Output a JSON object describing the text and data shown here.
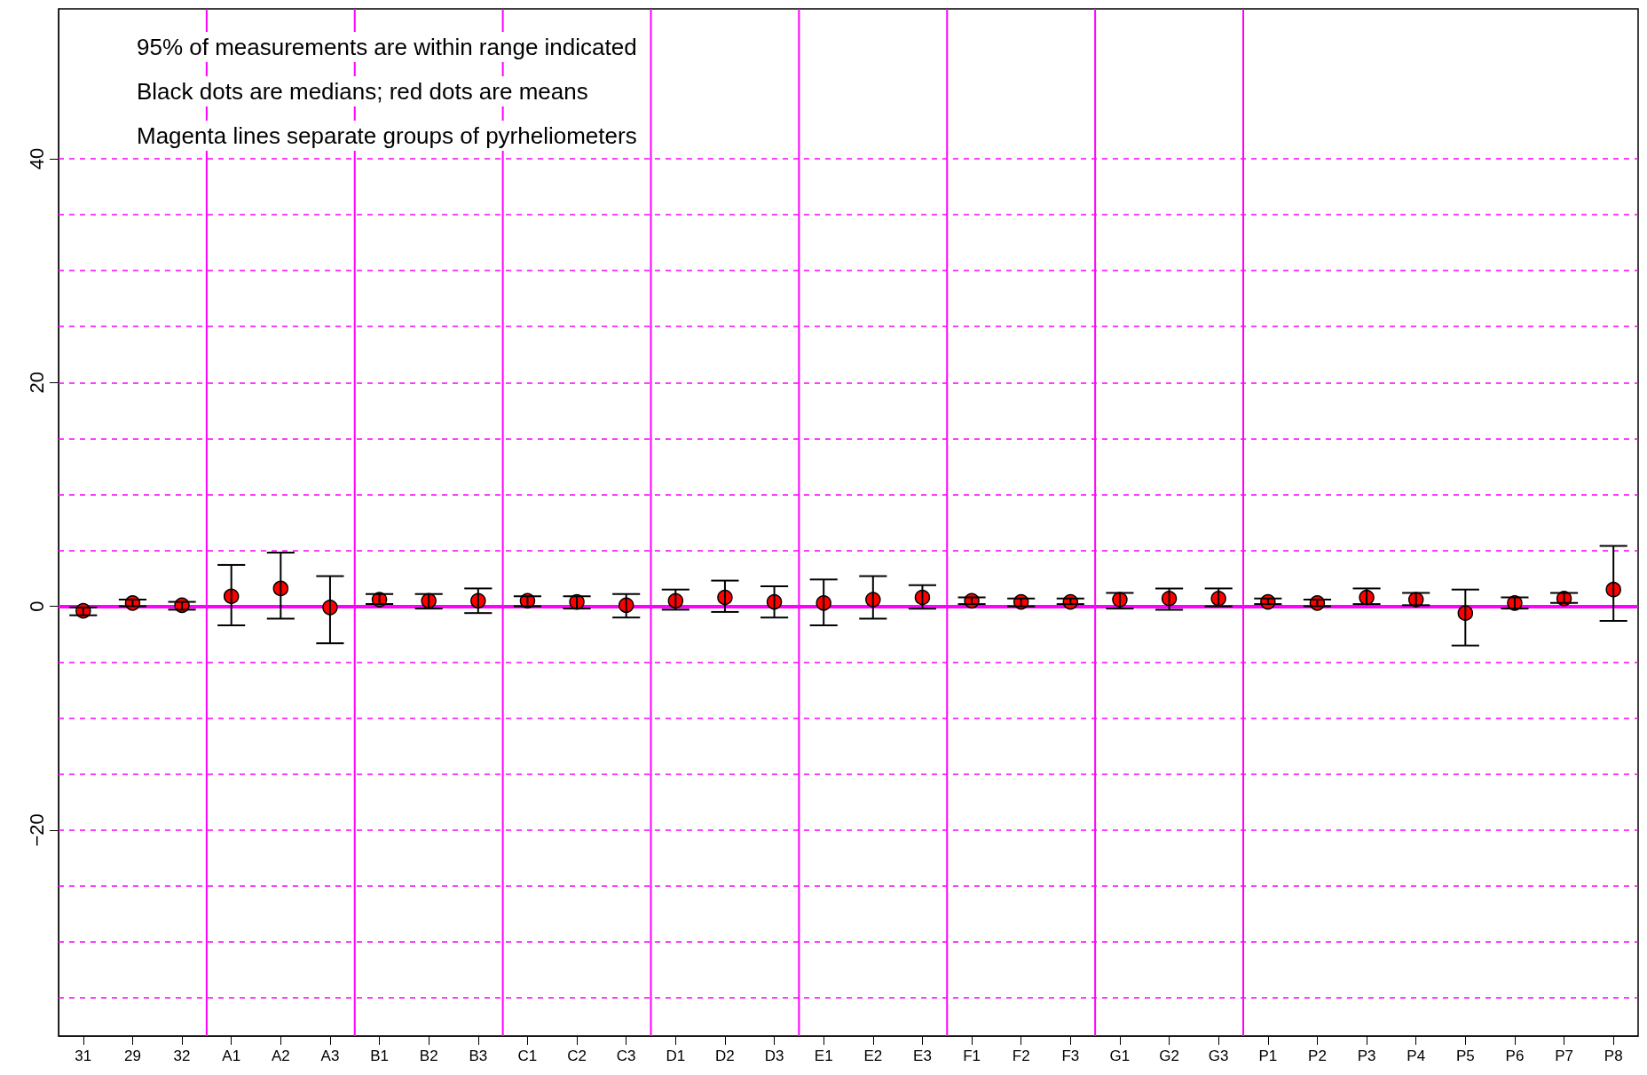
{
  "chart_data": {
    "type": "scatter",
    "annotations": [
      "95% of measurements are within range indicated",
      "Black dots are medians; red dots are means",
      "Magenta lines separate groups of pyrheliometers"
    ],
    "categories": [
      "31",
      "29",
      "32",
      "A1",
      "A2",
      "A3",
      "B1",
      "B2",
      "B3",
      "C1",
      "C2",
      "C3",
      "D1",
      "D2",
      "D3",
      "E1",
      "E2",
      "E3",
      "F1",
      "F2",
      "F3",
      "G1",
      "G2",
      "G3",
      "P1",
      "P2",
      "P3",
      "P4",
      "P5",
      "P6",
      "P7",
      "P8"
    ],
    "ylim": [
      -38.4,
      53.4
    ],
    "yticks": [
      {
        "value": -35,
        "label": null
      },
      {
        "value": -30,
        "label": null
      },
      {
        "value": -25,
        "label": null
      },
      -20,
      {
        "value": -15,
        "label": null
      },
      {
        "value": -10,
        "label": null
      },
      {
        "value": -5,
        "label": null
      },
      0,
      {
        "value": 5,
        "label": null
      },
      {
        "value": 10,
        "label": null
      },
      {
        "value": 15,
        "label": null
      },
      20,
      {
        "value": 25,
        "label": null
      },
      {
        "value": 30,
        "label": null
      },
      {
        "value": 35,
        "label": null
      },
      40
    ],
    "grid": "y",
    "marker": "circle",
    "series": [
      {
        "color": "#ff0000",
        "values": [
          -0.4,
          0.3,
          0.1,
          0.9,
          1.6,
          -0.1,
          0.6,
          0.5,
          0.5,
          0.5,
          0.4,
          0.1,
          0.5,
          0.8,
          0.4,
          0.3,
          0.6,
          0.8,
          0.5,
          0.4,
          0.4,
          0.6,
          0.7,
          0.7,
          0.4,
          0.3,
          0.8,
          0.6,
          -0.6,
          0.3,
          0.7,
          1.5
        ],
        "errors": [
          [
            -0.8,
            -0.1
          ],
          [
            0,
            0.6
          ],
          [
            -0.3,
            0.4
          ],
          [
            -1.7,
            3.7
          ],
          [
            -1.1,
            4.8
          ],
          [
            -3.3,
            2.7
          ],
          [
            0.2,
            1.1
          ],
          [
            -0.2,
            1.1
          ],
          [
            -0.6,
            1.6
          ],
          [
            0,
            0.9
          ],
          [
            -0.2,
            0.9
          ],
          [
            -1.0,
            1.1
          ],
          [
            -0.3,
            1.5
          ],
          [
            -0.5,
            2.3
          ],
          [
            -1.0,
            1.8
          ],
          [
            -1.7,
            2.4
          ],
          [
            -1.1,
            2.7
          ],
          [
            -0.2,
            1.9
          ],
          [
            0.2,
            0.8
          ],
          [
            0,
            0.7
          ],
          [
            0.2,
            0.7
          ],
          [
            -0.2,
            1.2
          ],
          [
            -0.3,
            1.6
          ],
          [
            0,
            1.6
          ],
          [
            0.2,
            0.7
          ],
          [
            0,
            0.6
          ],
          [
            0.2,
            1.6
          ],
          [
            0.1,
            1.2
          ],
          [
            -3.5,
            1.5
          ],
          [
            -0.2,
            0.8
          ],
          [
            0.3,
            1.2
          ],
          [
            -1.3,
            5.4
          ]
        ]
      }
    ],
    "ref_lines": [
      {
        "axis": "y",
        "value": 0,
        "color": "#ff00ff"
      }
    ]
  }
}
